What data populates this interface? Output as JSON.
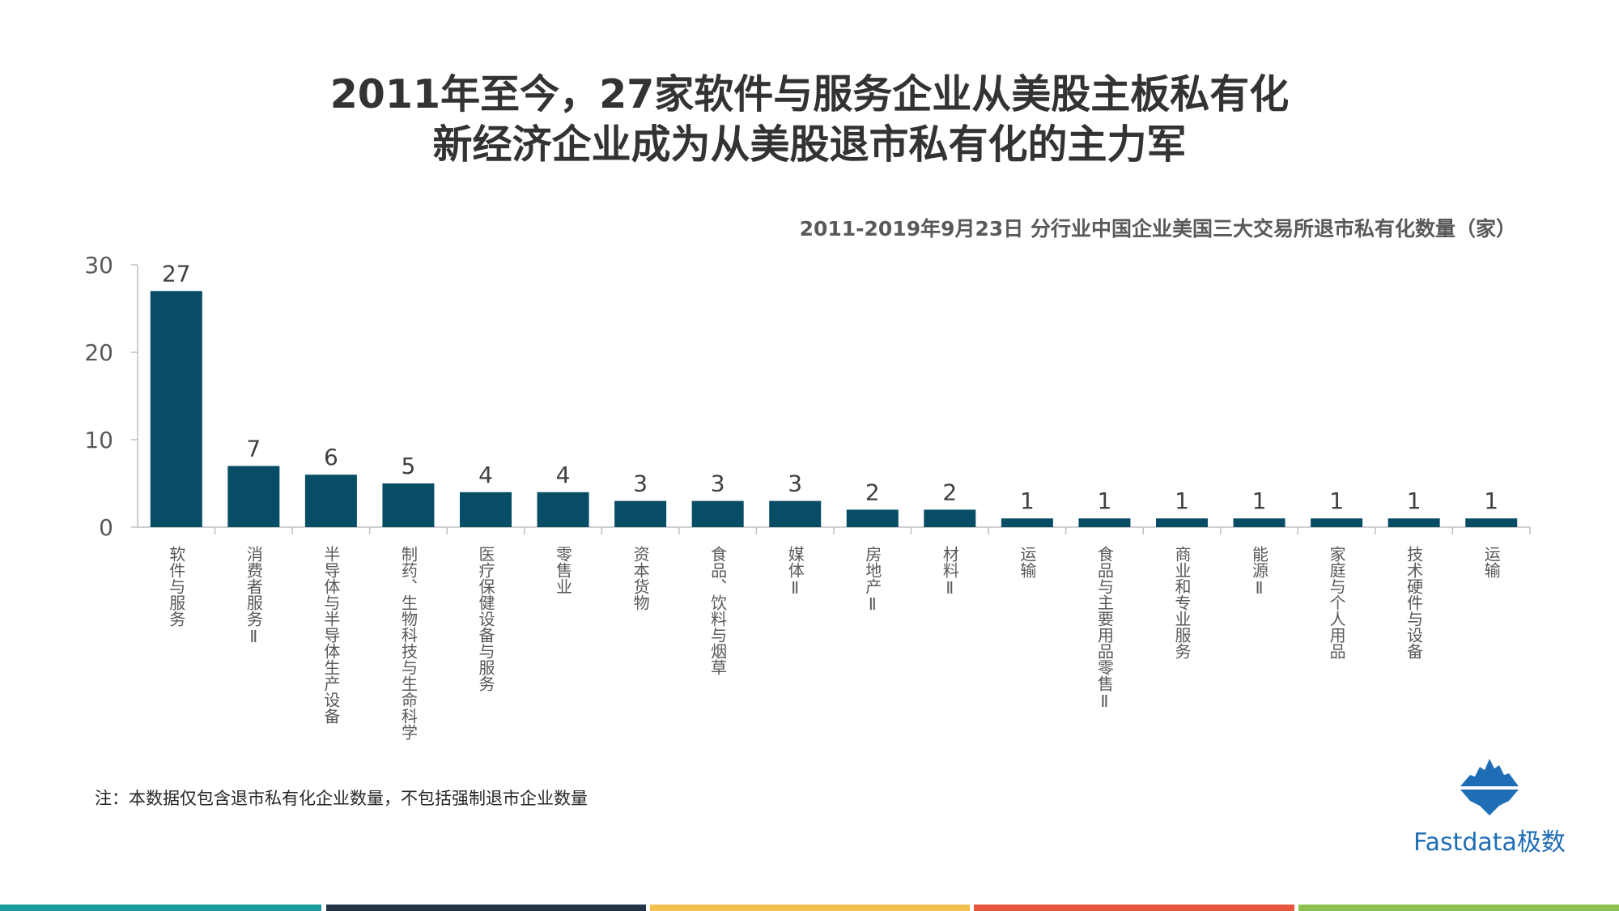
{
  "title_lines": [
    "2011年至今，27家软件与服务企业从美股主板私有化",
    "新经济企业成为从美股退市私有化的主力军"
  ],
  "chart_subtitle": "2011-2019年9月23日 分行业中国企业美国三大交易所退市私有化数量（家）",
  "chart_data": {
    "type": "bar",
    "title": "2011-2019年9月23日 分行业中国企业美国三大交易所退市私有化数量（家）",
    "categories": [
      "软件与服务",
      "消费者服务Ⅱ",
      "半导体与半导体生产设备",
      "制药、生物科技与生命科学",
      "医疗保健设备与服务",
      "零售业",
      "资本货物",
      "食品、饮料与烟草",
      "媒体Ⅱ",
      "房地产Ⅱ",
      "材料Ⅱ",
      "运输",
      "食品与主要用品零售Ⅱ",
      "商业和专业服务",
      "能源Ⅱ",
      "家庭与个人用品",
      "技术硬件与设备",
      "运输"
    ],
    "values": [
      27,
      7,
      6,
      5,
      4,
      4,
      3,
      3,
      3,
      2,
      2,
      1,
      1,
      1,
      1,
      1,
      1,
      1
    ],
    "yticks": [
      0,
      10,
      20,
      30
    ],
    "ylim": [
      0,
      30
    ],
    "xlabel": "",
    "ylabel": "",
    "bar_color": "#074d65",
    "grid": false
  },
  "note": "注：本数据仅包含退市私有化企业数量，不包括强制退市企业数量",
  "brand": {
    "name": "Fastdata极数",
    "icon": "iceberg-logo-icon",
    "color": "#1f6db5"
  },
  "footer_colors": [
    "#1a9a9a",
    "#243447",
    "#f2c14e",
    "#e8553e",
    "#8cc152"
  ]
}
